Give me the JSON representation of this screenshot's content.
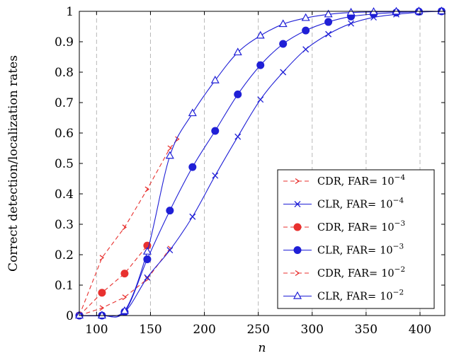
{
  "chart_data": {
    "type": "line",
    "title": "",
    "xlabel": "n",
    "ylabel": "Correct detection/localization rates",
    "xlim": [
      84,
      423
    ],
    "ylim": [
      0,
      1
    ],
    "xticks": [
      "100",
      "150",
      "200",
      "250",
      "300",
      "350",
      "400"
    ],
    "yticks": [
      "0",
      "0.1",
      "0.2",
      "0.3",
      "0.4",
      "0.5",
      "0.6",
      "0.7",
      "0.8",
      "0.9",
      "1"
    ],
    "grid": "vertical-dashed",
    "legend_position": "bottom-right",
    "legend": {
      "prefix_cdr": "CDR, FAR=",
      "prefix_clr": "CLR, FAR=",
      "base": "10",
      "exp4": "−4",
      "exp3": "−3",
      "exp2": "−2"
    },
    "colors": {
      "cdr": "#e8312f",
      "clr": "#1f1fd6"
    },
    "series": [
      {
        "name": "CDR, FAR= 10^-4",
        "style": "dashed",
        "marker": "arrow",
        "x": [
          84,
          105,
          126,
          147,
          168
        ],
        "y": [
          0.0,
          0.025,
          0.06,
          0.12,
          0.22
        ]
      },
      {
        "name": "CLR, FAR= 10^-4",
        "style": "solid",
        "marker": "x",
        "x": [
          84,
          105,
          126,
          147,
          168,
          189,
          210,
          231,
          252,
          273,
          294,
          315,
          336,
          357,
          378,
          399,
          420
        ],
        "y": [
          0.0,
          0.0,
          0.012,
          0.125,
          0.215,
          0.325,
          0.46,
          0.588,
          0.71,
          0.8,
          0.875,
          0.925,
          0.96,
          0.98,
          0.99,
          0.997,
          1.0
        ]
      },
      {
        "name": "CDR, FAR= 10^-3",
        "style": "dashed",
        "marker": "dot",
        "x": [
          84,
          105,
          126,
          147
        ],
        "y": [
          0.0,
          0.075,
          0.138,
          0.23
        ]
      },
      {
        "name": "CLR, FAR= 10^-3",
        "style": "solid",
        "marker": "dot",
        "x": [
          84,
          105,
          126,
          147,
          168,
          189,
          210,
          231,
          252,
          273,
          294,
          315,
          336,
          357,
          378,
          399,
          420
        ],
        "y": [
          0.0,
          0.0,
          0.012,
          0.185,
          0.345,
          0.488,
          0.607,
          0.727,
          0.823,
          0.893,
          0.937,
          0.965,
          0.983,
          0.991,
          0.996,
          0.999,
          1.0
        ]
      },
      {
        "name": "CDR, FAR= 10^-2",
        "style": "dashed",
        "marker": "arrow",
        "x": [
          84,
          105,
          126,
          147,
          168,
          175
        ],
        "y": [
          0.0,
          0.19,
          0.29,
          0.415,
          0.55,
          0.58
        ]
      },
      {
        "name": "CLR, FAR= 10^-2",
        "style": "solid",
        "marker": "triangle",
        "x": [
          84,
          105,
          126,
          147,
          168,
          189,
          210,
          231,
          252,
          273,
          294,
          315,
          336,
          357,
          378,
          399,
          420
        ],
        "y": [
          0.0,
          0.0,
          0.015,
          0.21,
          0.525,
          0.665,
          0.773,
          0.865,
          0.92,
          0.958,
          0.978,
          0.99,
          0.996,
          0.998,
          0.999,
          1.0,
          1.0
        ]
      }
    ]
  }
}
